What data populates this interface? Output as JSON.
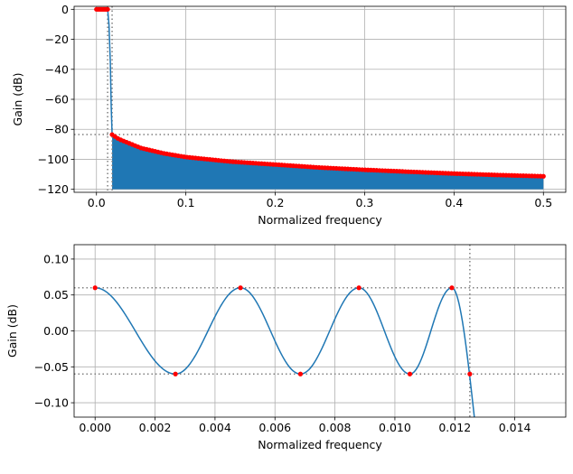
{
  "chart_data": [
    {
      "type": "line",
      "xlabel": "Normalized frequency",
      "ylabel": "Gain (dB)",
      "xlim": [
        -0.025,
        0.525
      ],
      "ylim": [
        -122,
        2
      ],
      "xticks": [
        0.0,
        0.1,
        0.2,
        0.3,
        0.4,
        0.5
      ],
      "xtick_labels": [
        "0.0",
        "0.1",
        "0.2",
        "0.3",
        "0.4",
        "0.5"
      ],
      "yticks": [
        0,
        -20,
        -40,
        -60,
        -80,
        -100,
        -120
      ],
      "ytick_labels": [
        "0",
        "−20",
        "−40",
        "−60",
        "−80",
        "−100",
        "−120"
      ],
      "grid": true,
      "reference_lines": {
        "horizontal": [
          -83.5
        ],
        "vertical": [
          0.0125,
          0.0175
        ]
      },
      "passband": {
        "x_start": 0.0,
        "x_end": 0.0125,
        "gain_db": 0
      },
      "transition": {
        "x": [
          0.0125,
          0.014,
          0.0155,
          0.0165,
          0.0175
        ],
        "y": [
          0,
          -10,
          -35,
          -65,
          -83.5
        ]
      },
      "stopband_envelope": {
        "x": [
          0.0175,
          0.025,
          0.05,
          0.075,
          0.1,
          0.15,
          0.2,
          0.25,
          0.3,
          0.35,
          0.4,
          0.45,
          0.5
        ],
        "y": [
          -83.5,
          -86.5,
          -92.5,
          -96,
          -98.5,
          -101.5,
          -103.5,
          -105.5,
          -107,
          -108.3,
          -109.5,
          -110.5,
          -111.3
        ]
      },
      "fill_floor": -120,
      "line_color": "#1f77b4",
      "fill_color": "#1f77b4",
      "marker_color": "#ff0000"
    },
    {
      "type": "line",
      "xlabel": "Normalized frequency",
      "ylabel": "Gain (dB)",
      "xlim": [
        -0.0007,
        0.0157
      ],
      "ylim": [
        -0.12,
        0.12
      ],
      "xticks": [
        0.0,
        0.002,
        0.004,
        0.006,
        0.008,
        0.01,
        0.012,
        0.014
      ],
      "xtick_labels": [
        "0.000",
        "0.002",
        "0.004",
        "0.006",
        "0.008",
        "0.010",
        "0.012",
        "0.014"
      ],
      "yticks": [
        0.1,
        0.05,
        0.0,
        -0.05,
        -0.1
      ],
      "ytick_labels": [
        "0.10",
        "0.05",
        "0.00",
        "−0.05",
        "−0.10"
      ],
      "grid": true,
      "reference_lines": {
        "horizontal": [
          0.06,
          -0.06
        ],
        "vertical": [
          0.0125
        ]
      },
      "extrema": {
        "x": [
          0.0,
          0.00268,
          0.00485,
          0.00685,
          0.0088,
          0.0105,
          0.0119,
          0.0125
        ],
        "y": [
          0.06,
          -0.06,
          0.06,
          -0.06,
          0.06,
          -0.06,
          0.06,
          -0.06
        ]
      },
      "curve_exit": {
        "x": 0.01265,
        "y": -0.12
      },
      "line_color": "#1f77b4",
      "marker_color": "#ff0000"
    }
  ]
}
